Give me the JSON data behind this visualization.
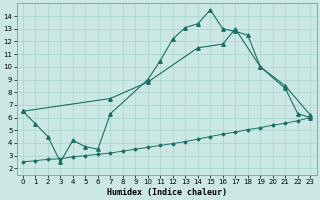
{
  "xlabel": "Humidex (Indice chaleur)",
  "bg_color": "#cce8e4",
  "grid_color": "#a8d4ce",
  "line_color": "#1a6e65",
  "xlim": [
    -0.5,
    23.5
  ],
  "ylim": [
    1.5,
    15.0
  ],
  "xticks": [
    0,
    1,
    2,
    3,
    4,
    5,
    6,
    7,
    8,
    9,
    10,
    11,
    12,
    13,
    14,
    15,
    16,
    17,
    18,
    19,
    20,
    21,
    22,
    23
  ],
  "yticks": [
    2,
    3,
    4,
    5,
    6,
    7,
    8,
    9,
    10,
    11,
    12,
    13,
    14
  ],
  "line1_x": [
    0,
    1,
    2,
    3,
    4,
    5,
    6,
    7,
    10,
    11,
    12,
    13,
    14,
    15,
    16,
    17,
    18,
    19,
    21,
    22,
    23
  ],
  "line1_y": [
    6.5,
    5.5,
    4.5,
    2.5,
    4.2,
    3.7,
    3.5,
    6.3,
    9.0,
    10.5,
    12.2,
    13.1,
    13.4,
    14.5,
    13.0,
    12.8,
    12.5,
    10.0,
    8.3,
    6.3,
    6.0
  ],
  "line2_x": [
    0,
    7,
    10,
    14,
    16,
    17,
    19,
    21,
    23
  ],
  "line2_y": [
    6.5,
    7.5,
    8.8,
    11.5,
    11.8,
    13.0,
    10.0,
    8.5,
    6.2
  ],
  "line3_x": [
    0,
    1,
    2,
    3,
    4,
    5,
    6,
    7,
    8,
    9,
    10,
    11,
    12,
    13,
    14,
    15,
    16,
    17,
    18,
    19,
    20,
    21,
    22,
    23
  ],
  "line3_y": [
    2.5,
    2.6,
    2.7,
    2.75,
    2.9,
    3.0,
    3.1,
    3.2,
    3.35,
    3.5,
    3.65,
    3.8,
    3.95,
    4.1,
    4.3,
    4.5,
    4.7,
    4.85,
    5.05,
    5.2,
    5.4,
    5.55,
    5.75,
    6.0
  ]
}
